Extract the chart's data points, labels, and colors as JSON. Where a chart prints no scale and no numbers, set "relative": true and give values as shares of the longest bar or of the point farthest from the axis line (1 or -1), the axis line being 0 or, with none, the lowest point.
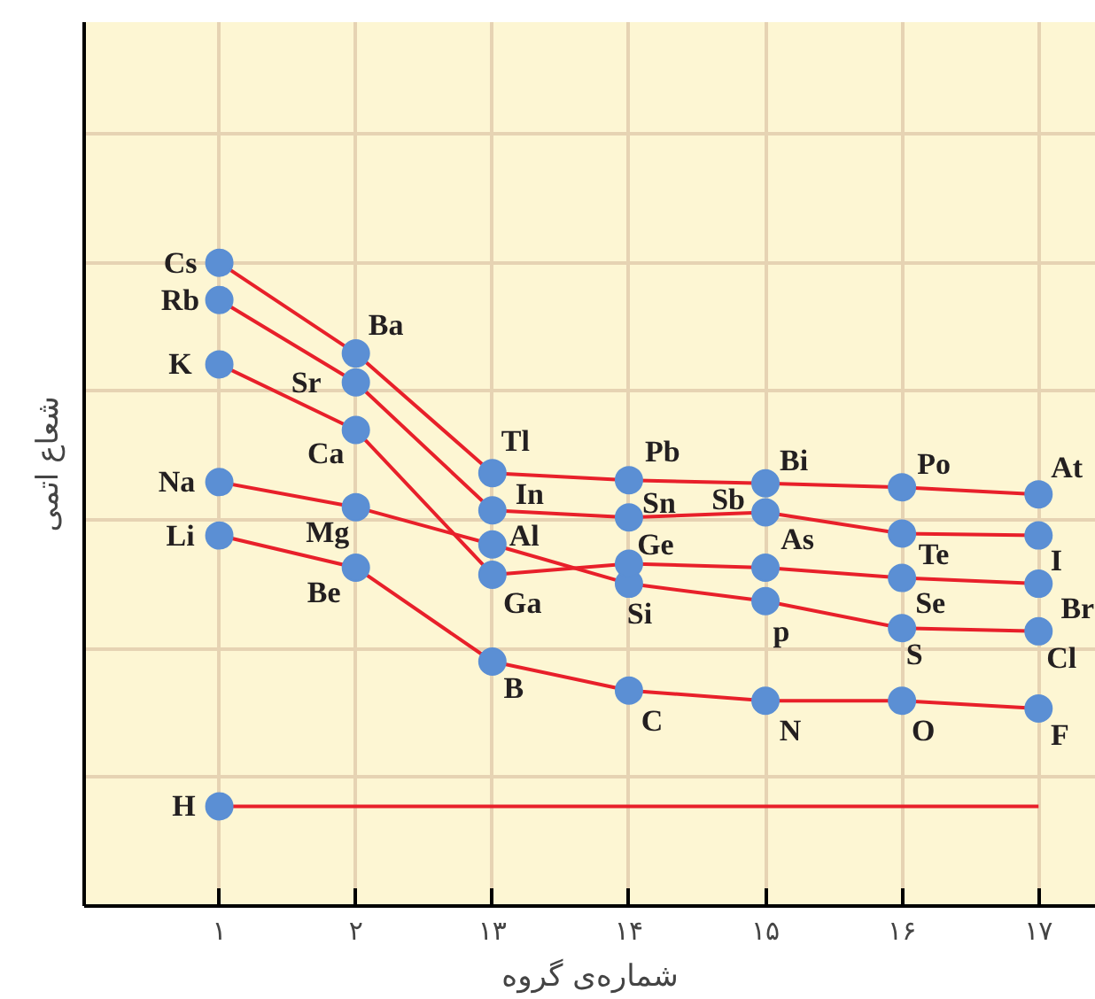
{
  "chart_data": {
    "type": "line",
    "relative": true,
    "xlabel": "شماره‌ی گروه",
    "ylabel": "شعاع اتمی",
    "categories": [
      "۱",
      "۲",
      "۱۳",
      "۱۴",
      "۱۵",
      "۱۶",
      "۱۷"
    ],
    "marker": "circle",
    "line_style": "solid",
    "grid": true,
    "series": [
      {
        "color": "#e8202a",
        "marker": "none",
        "values": [
          0.155,
          0.155,
          0.155,
          0.155,
          0.155,
          0.155,
          0.155
        ]
      },
      {
        "type": "scatter",
        "color": "#5b8fd4",
        "values": [
          0.155,
          null,
          null,
          null,
          null,
          null,
          null
        ]
      },
      {
        "color": "#e8202a",
        "colors": [
          "#5b8fd4",
          "#5b8fd4",
          "#5b8fd4",
          "#5b8fd4",
          "#5b8fd4",
          "#5b8fd4",
          "#5b8fd4"
        ],
        "values": [
          0.576,
          0.526,
          0.38,
          0.335,
          0.319,
          0.319,
          0.307
        ]
      },
      {
        "color": "#e8202a",
        "colors": [
          "#5b8fd4",
          "#5b8fd4",
          "#5b8fd4",
          "#5b8fd4",
          "#5b8fd4",
          "#5b8fd4",
          "#5b8fd4"
        ],
        "values": [
          0.659,
          0.62,
          0.562,
          0.501,
          0.474,
          0.432,
          0.427
        ]
      },
      {
        "color": "#e8202a",
        "colors": [
          "#5b8fd4",
          "#5b8fd4",
          "#5b8fd4",
          "#5b8fd4",
          "#5b8fd4",
          "#5b8fd4",
          "#5b8fd4"
        ],
        "values": [
          0.842,
          0.74,
          0.515,
          0.532,
          0.526,
          0.51,
          0.501
        ]
      },
      {
        "color": "#e8202a",
        "colors": [
          "#5b8fd4",
          "#5b8fd4",
          "#5b8fd4",
          "#5b8fd4",
          "#5b8fd4",
          "#5b8fd4",
          "#5b8fd4"
        ],
        "values": [
          0.942,
          0.814,
          0.615,
          0.604,
          0.612,
          0.579,
          0.576
        ]
      },
      {
        "color": "#e8202a",
        "colors": [
          "#5b8fd4",
          "#5b8fd4",
          "#5b8fd4",
          "#5b8fd4",
          "#5b8fd4",
          "#5b8fd4",
          "#5b8fd4"
        ],
        "values": [
          1.0,
          0.859,
          0.673,
          0.662,
          0.657,
          0.651,
          0.64
        ]
      }
    ],
    "annotations": [
      {
        "text": "Cs",
        "x": "۱",
        "y": 1.0
      },
      {
        "text": "Rb",
        "x": "۱",
        "y": 0.942
      },
      {
        "text": "K",
        "x": "۱",
        "y": 0.842
      },
      {
        "text": "Na",
        "x": "۱",
        "y": 0.659
      },
      {
        "text": "Li",
        "x": "۱",
        "y": 0.576
      },
      {
        "text": "H",
        "x": "۱",
        "y": 0.155
      },
      {
        "text": "Ba",
        "x": "۲",
        "y": 0.859
      },
      {
        "text": "Sr",
        "x": "۲",
        "y": 0.814
      },
      {
        "text": "Ca",
        "x": "۲",
        "y": 0.74
      },
      {
        "text": "Mg",
        "x": "۲",
        "y": 0.62
      },
      {
        "text": "Be",
        "x": "۲",
        "y": 0.526
      },
      {
        "text": "Tl",
        "x": "۱۳",
        "y": 0.673
      },
      {
        "text": "In",
        "x": "۱۳",
        "y": 0.615
      },
      {
        "text": "Al",
        "x": "۱۳",
        "y": 0.562
      },
      {
        "text": "Ga",
        "x": "۱۳",
        "y": 0.515
      },
      {
        "text": "B",
        "x": "۱۳",
        "y": 0.38
      },
      {
        "text": "Pb",
        "x": "۱۴",
        "y": 0.662
      },
      {
        "text": "Sn",
        "x": "۱۴",
        "y": 0.604
      },
      {
        "text": "Ge",
        "x": "۱۴",
        "y": 0.532
      },
      {
        "text": "Si",
        "x": "۱۴",
        "y": 0.501
      },
      {
        "text": "C",
        "x": "۱۴",
        "y": 0.335
      },
      {
        "text": "Bi",
        "x": "۱۵",
        "y": 0.657
      },
      {
        "text": "Sb",
        "x": "۱۵",
        "y": 0.612
      },
      {
        "text": "As",
        "x": "۱۵",
        "y": 0.526
      },
      {
        "text": "p",
        "x": "۱۵",
        "y": 0.474
      },
      {
        "text": "N",
        "x": "۱۵",
        "y": 0.319
      },
      {
        "text": "Po",
        "x": "۱۶",
        "y": 0.651
      },
      {
        "text": "Te",
        "x": "۱۶",
        "y": 0.579
      },
      {
        "text": "Se",
        "x": "۱۶",
        "y": 0.51
      },
      {
        "text": "S",
        "x": "۱۶",
        "y": 0.432
      },
      {
        "text": "O",
        "x": "۱۶",
        "y": 0.319
      },
      {
        "text": "At",
        "x": "۱۷",
        "y": 0.64
      },
      {
        "text": "I",
        "x": "۱۷",
        "y": 0.576
      },
      {
        "text": "Br",
        "x": "۱۷",
        "y": 0.501
      },
      {
        "text": "Cl",
        "x": "۱۷",
        "y": 0.427
      },
      {
        "text": "F",
        "x": "۱۷",
        "y": 0.307
      }
    ]
  }
}
